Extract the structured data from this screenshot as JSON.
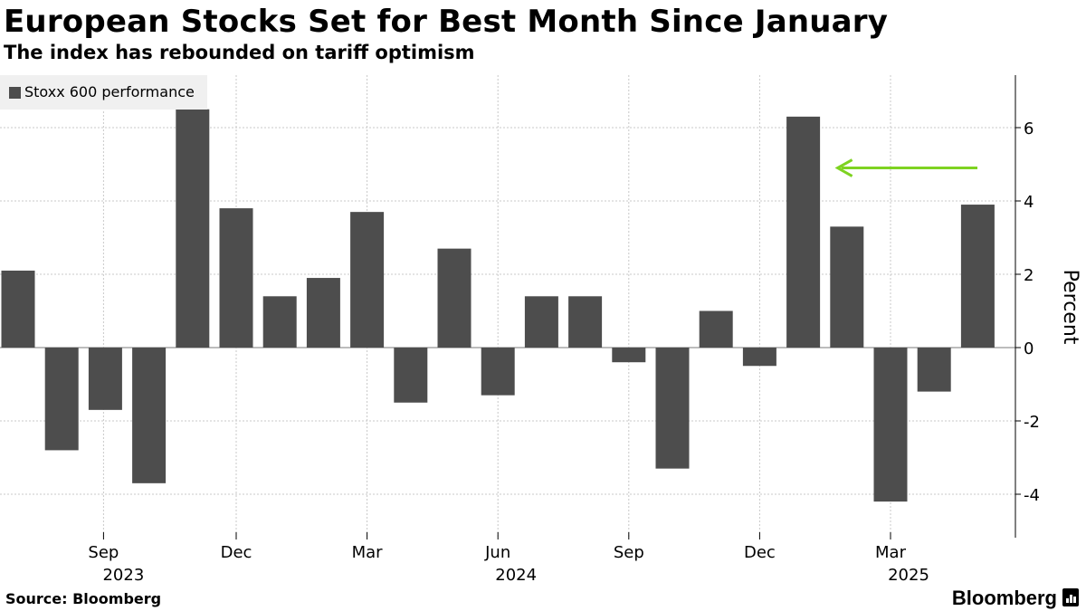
{
  "title": "European Stocks Set for Best Month Since January",
  "subtitle": "The index has rebounded on tariff optimism",
  "source": "Source: Bloomberg",
  "brand": "Bloomberg",
  "chart_data": {
    "type": "bar",
    "categories": [
      "2023-07",
      "2023-08",
      "2023-09",
      "2023-10",
      "2023-11",
      "2023-12",
      "2024-01",
      "2024-02",
      "2024-03",
      "2024-04",
      "2024-05",
      "2024-06",
      "2024-07",
      "2024-08",
      "2024-09",
      "2024-10",
      "2024-11",
      "2024-12",
      "2025-01",
      "2025-02",
      "2025-03",
      "2025-04",
      "2025-05"
    ],
    "series": [
      {
        "name": "Stoxx 600 performance",
        "values": [
          2.1,
          -2.8,
          -1.7,
          -3.7,
          6.5,
          3.8,
          1.4,
          1.9,
          3.7,
          -1.5,
          2.7,
          -1.3,
          1.4,
          1.4,
          -0.4,
          -3.3,
          1.0,
          -0.5,
          6.3,
          3.3,
          -4.2,
          -1.2,
          3.9
        ]
      }
    ],
    "ylabel": "Percent",
    "ylim": [
      -5,
      7.5
    ],
    "yticks": [
      6,
      4,
      2,
      0,
      -2,
      -4
    ],
    "xtick_labels": [
      "Sep",
      "Dec",
      "Mar",
      "Jun",
      "Sep",
      "Dec",
      "Mar"
    ],
    "xtick_positions": [
      "2023-09",
      "2023-12",
      "2024-03",
      "2024-06",
      "2024-09",
      "2024-12",
      "2025-03"
    ],
    "year_labels": [
      "2023",
      "2024",
      "2025"
    ],
    "year_positions": [
      "2023-09",
      "2024-06",
      "2025-03"
    ],
    "bar_color": "#4d4d4d",
    "gridlines": true,
    "legend_position": "top-left",
    "axis_side": "right",
    "annotation": {
      "type": "arrow",
      "color": "#7ed321",
      "points_to": "2025-01",
      "value": 4.9
    }
  }
}
